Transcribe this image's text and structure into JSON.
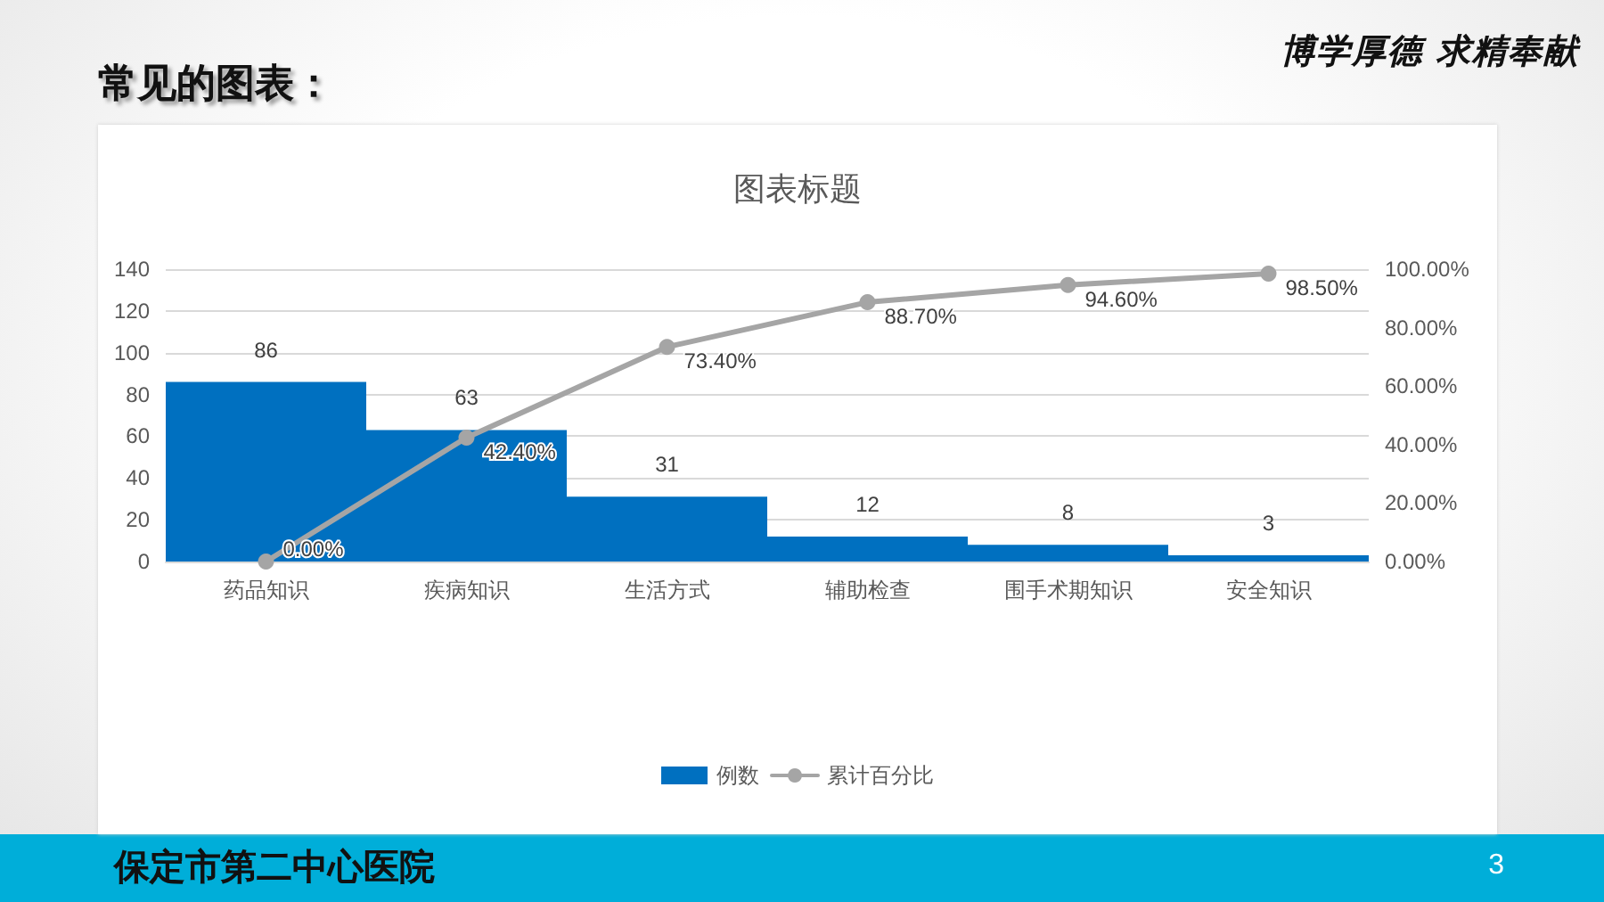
{
  "chart_data": {
    "type": "bar",
    "title": "图表标题",
    "categories": [
      "药品知识",
      "疾病知识",
      "生活方式",
      "辅助检查",
      "围手术期知识",
      "安全知识"
    ],
    "series": [
      {
        "name": "例数",
        "color": "#0070c0",
        "values": [
          86,
          63,
          31,
          12,
          8,
          3
        ],
        "value_labels": [
          "86",
          "63",
          "31",
          "12",
          "8",
          "3"
        ]
      },
      {
        "name": "累计百分比",
        "type": "line",
        "axis": "y2",
        "color": "#a5a5a5",
        "values": [
          0,
          42.4,
          73.4,
          88.7,
          94.6,
          98.5
        ],
        "value_labels": [
          "0.00%",
          "42.40%",
          "73.40%",
          "88.70%",
          "94.60%",
          "98.50%"
        ]
      }
    ],
    "ylim": [
      0,
      140
    ],
    "yticks": [
      0,
      20,
      40,
      60,
      80,
      100,
      120,
      140
    ],
    "y2lim": [
      0,
      100
    ],
    "y2ticks": [
      {
        "value": 0,
        "label": "0.00%"
      },
      {
        "value": 20,
        "label": "20.00%"
      },
      {
        "value": 40,
        "label": "40.00%"
      },
      {
        "value": 60,
        "label": "60.00%"
      },
      {
        "value": 80,
        "label": "80.00%"
      },
      {
        "value": 100,
        "label": "100.00%"
      }
    ],
    "grid": "y",
    "legend": "bottom",
    "marker": "circle",
    "line_style": "solid",
    "annotations": [
      "常见的图表：",
      "博学厚德 求精奉献",
      "保定市第二中心医院",
      "3"
    ]
  }
}
